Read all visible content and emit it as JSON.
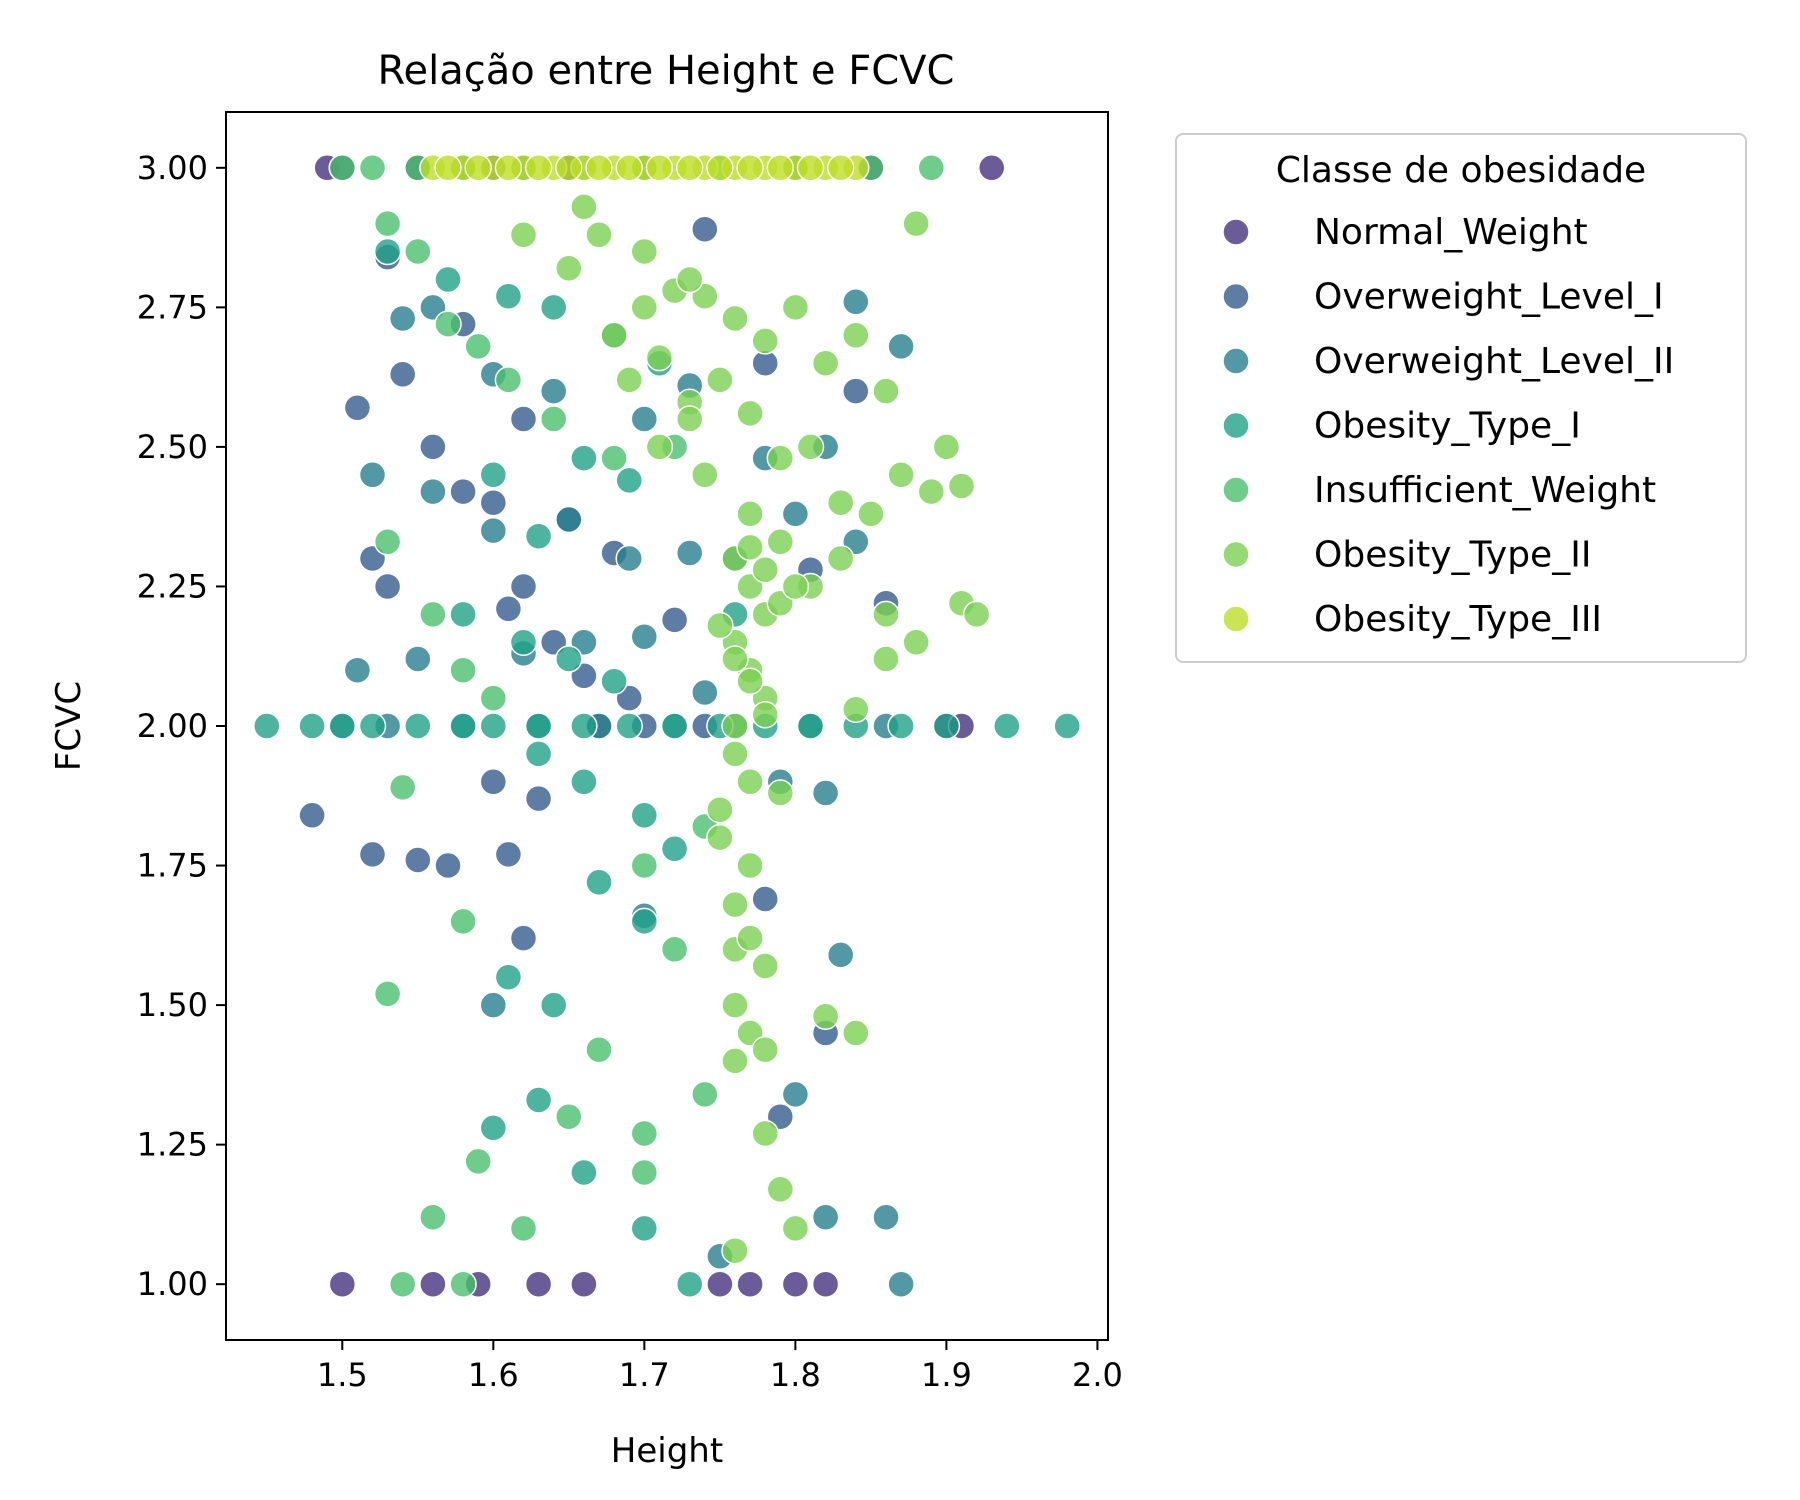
{
  "chart_data": {
    "type": "scatter",
    "title": "Relação entre Height e FCVC",
    "xlabel": "Height",
    "ylabel": "FCVC",
    "xlim": [
      1.423,
      2.007
    ],
    "ylim": [
      0.9,
      3.1
    ],
    "xticks": [
      "1.5",
      "1.6",
      "1.7",
      "1.8",
      "1.9",
      "2.0"
    ],
    "yticks": [
      "1.00",
      "1.25",
      "1.50",
      "1.75",
      "2.00",
      "2.25",
      "2.50",
      "2.75",
      "3.00"
    ],
    "grid": false,
    "legend": {
      "title": "Classe de obesidade",
      "placement": "outside-upper-right"
    },
    "series": [
      {
        "name": "Normal_Weight",
        "color": "#46327e",
        "x": [
          1.49,
          1.5,
          1.55,
          1.58,
          1.6,
          1.62,
          1.65,
          1.7,
          1.8,
          1.85,
          1.93,
          1.5,
          1.56,
          1.59,
          1.63,
          1.66,
          1.75,
          1.77,
          1.8,
          1.82,
          1.9,
          1.91
        ],
        "y": [
          3.0,
          3.0,
          3.0,
          3.0,
          3.0,
          3.0,
          3.0,
          3.0,
          3.0,
          3.0,
          3.0,
          1.0,
          1.0,
          1.0,
          1.0,
          1.0,
          1.0,
          1.0,
          1.0,
          1.0,
          2.0,
          2.0
        ]
      },
      {
        "name": "Overweight_Level_I",
        "color": "#365c8d",
        "x": [
          1.53,
          1.58,
          1.62,
          1.6,
          1.65,
          1.61,
          1.56,
          1.52,
          1.64,
          1.62,
          1.66,
          1.69,
          1.72,
          1.68,
          1.81,
          1.84,
          1.78,
          1.74,
          1.6,
          1.63,
          1.57,
          1.55,
          1.58,
          1.48,
          1.51,
          1.62,
          1.67,
          1.7,
          1.74,
          1.86,
          1.52,
          1.61,
          1.78,
          1.79,
          1.82,
          1.53,
          1.54
        ],
        "y": [
          2.84,
          2.72,
          2.55,
          2.4,
          2.37,
          2.21,
          2.5,
          2.3,
          2.15,
          2.25,
          2.09,
          2.05,
          2.19,
          2.31,
          2.28,
          2.6,
          2.65,
          2.89,
          1.9,
          1.87,
          1.75,
          1.76,
          2.42,
          1.84,
          2.57,
          1.62,
          2.0,
          2.0,
          2.0,
          2.22,
          1.77,
          1.77,
          1.69,
          1.3,
          1.45,
          2.25,
          2.63
        ]
      },
      {
        "name": "Overweight_Level_II",
        "color": "#277f8e",
        "x": [
          1.5,
          1.53,
          1.58,
          1.63,
          1.67,
          1.72,
          1.76,
          1.81,
          1.86,
          1.54,
          1.56,
          1.6,
          1.64,
          1.7,
          1.73,
          1.78,
          1.82,
          1.84,
          1.52,
          1.56,
          1.6,
          1.65,
          1.69,
          1.73,
          1.76,
          1.8,
          1.84,
          1.87,
          1.51,
          1.55,
          1.62,
          1.66,
          1.7,
          1.74,
          1.79,
          1.82,
          1.83,
          1.86,
          1.87,
          1.82,
          1.75,
          1.8,
          1.7,
          1.6
        ],
        "y": [
          2.0,
          2.0,
          2.0,
          2.0,
          2.0,
          2.0,
          2.0,
          2.0,
          2.0,
          2.73,
          2.75,
          2.63,
          2.6,
          2.55,
          2.61,
          2.48,
          2.5,
          2.76,
          2.45,
          2.42,
          2.35,
          2.37,
          2.3,
          2.31,
          2.3,
          2.38,
          2.33,
          2.68,
          2.1,
          2.12,
          2.13,
          2.15,
          2.16,
          2.06,
          1.9,
          1.88,
          1.59,
          1.12,
          1.0,
          1.12,
          1.05,
          1.34,
          1.66,
          1.5
        ]
      },
      {
        "name": "Obesity_Type_I",
        "color": "#1fa187",
        "x": [
          1.45,
          1.48,
          1.5,
          1.52,
          1.55,
          1.58,
          1.6,
          1.63,
          1.66,
          1.69,
          1.72,
          1.75,
          1.78,
          1.81,
          1.84,
          1.87,
          1.9,
          1.94,
          1.98,
          1.53,
          1.57,
          1.61,
          1.64,
          1.68,
          1.71,
          1.6,
          1.63,
          1.66,
          1.69,
          1.58,
          1.62,
          1.65,
          1.68,
          1.63,
          1.66,
          1.7,
          1.72,
          1.61,
          1.64,
          1.67,
          1.7,
          1.6,
          1.63,
          1.66,
          1.7,
          1.73,
          1.76
        ],
        "y": [
          2.0,
          2.0,
          2.0,
          2.0,
          2.0,
          2.0,
          2.0,
          2.0,
          2.0,
          2.0,
          2.0,
          2.0,
          2.0,
          2.0,
          2.0,
          2.0,
          2.0,
          2.0,
          2.0,
          2.85,
          2.8,
          2.77,
          2.75,
          2.7,
          2.65,
          2.45,
          2.34,
          2.48,
          2.44,
          2.2,
          2.15,
          2.12,
          2.08,
          1.95,
          1.9,
          1.84,
          1.78,
          1.55,
          1.5,
          1.72,
          1.65,
          1.28,
          1.33,
          1.2,
          1.1,
          1.0,
          2.2
        ]
      },
      {
        "name": "Insufficient_Weight",
        "color": "#4ac16d",
        "x": [
          1.5,
          1.52,
          1.55,
          1.58,
          1.62,
          1.66,
          1.7,
          1.75,
          1.8,
          1.85,
          1.89,
          1.53,
          1.55,
          1.57,
          1.59,
          1.61,
          1.64,
          1.68,
          1.72,
          1.53,
          1.56,
          1.58,
          1.6,
          1.54,
          1.58,
          1.53,
          1.7,
          1.72,
          1.74,
          1.56,
          1.59,
          1.62,
          1.65,
          1.67,
          1.7,
          1.54,
          1.58,
          1.7,
          1.74
        ],
        "y": [
          3.0,
          3.0,
          3.0,
          3.0,
          3.0,
          3.0,
          3.0,
          3.0,
          3.0,
          3.0,
          3.0,
          2.9,
          2.85,
          2.72,
          2.68,
          2.62,
          2.55,
          2.48,
          2.5,
          2.33,
          2.2,
          2.1,
          2.05,
          1.89,
          1.65,
          1.52,
          1.75,
          1.6,
          1.82,
          1.12,
          1.22,
          1.1,
          1.3,
          1.42,
          1.27,
          1.0,
          1.0,
          1.2,
          1.34
        ]
      },
      {
        "name": "Obesity_Type_II",
        "color": "#7ad151",
        "x": [
          1.76,
          1.77,
          1.78,
          1.76,
          1.77,
          1.78,
          1.76,
          1.77,
          1.78,
          1.75,
          1.79,
          1.76,
          1.77,
          1.78,
          1.76,
          1.77,
          1.75,
          1.79,
          1.76,
          1.77,
          1.78,
          1.76,
          1.77,
          1.76,
          1.78,
          1.7,
          1.68,
          1.72,
          1.71,
          1.69,
          1.73,
          1.65,
          1.67,
          1.74,
          1.76,
          1.78,
          1.8,
          1.82,
          1.84,
          1.86,
          1.88,
          1.9,
          1.91,
          1.83,
          1.85,
          1.87,
          1.89,
          1.91,
          1.92,
          1.81,
          1.83,
          1.86,
          1.88,
          1.8,
          1.84,
          1.86,
          1.62,
          1.66,
          1.7,
          1.73,
          1.75,
          1.77,
          1.79,
          1.81,
          1.77,
          1.76,
          1.75,
          1.78,
          1.79,
          1.8,
          1.76,
          1.82,
          1.84,
          1.73,
          1.71,
          1.74,
          1.77,
          1.79
        ],
        "y": [
          2.3,
          2.25,
          2.2,
          2.15,
          2.1,
          2.05,
          2.0,
          2.32,
          2.28,
          2.18,
          2.22,
          2.12,
          2.08,
          2.02,
          1.95,
          1.9,
          1.85,
          1.88,
          1.6,
          1.62,
          1.57,
          1.5,
          1.45,
          1.4,
          1.42,
          2.75,
          2.7,
          2.78,
          2.66,
          2.62,
          2.58,
          2.82,
          2.88,
          2.77,
          2.73,
          2.69,
          2.75,
          2.65,
          2.7,
          2.6,
          2.9,
          2.5,
          2.43,
          2.4,
          2.38,
          2.45,
          2.42,
          2.22,
          2.2,
          2.25,
          2.3,
          2.2,
          2.15,
          2.25,
          2.03,
          2.12,
          2.88,
          2.93,
          2.85,
          2.8,
          2.62,
          2.56,
          2.48,
          2.5,
          1.75,
          1.68,
          1.8,
          1.27,
          1.17,
          1.1,
          1.06,
          1.48,
          1.45,
          2.55,
          2.5,
          2.45,
          2.38,
          2.33
        ]
      },
      {
        "name": "Obesity_Type_III",
        "color": "#bddf26",
        "x": [
          1.56,
          1.58,
          1.6,
          1.62,
          1.64,
          1.66,
          1.68,
          1.7,
          1.72,
          1.74,
          1.76,
          1.78,
          1.8,
          1.82,
          1.84,
          1.59,
          1.63,
          1.67,
          1.71,
          1.75,
          1.79,
          1.83,
          1.57,
          1.61,
          1.65,
          1.69,
          1.73,
          1.77,
          1.81
        ],
        "y": [
          3.0,
          3.0,
          3.0,
          3.0,
          3.0,
          3.0,
          3.0,
          3.0,
          3.0,
          3.0,
          3.0,
          3.0,
          3.0,
          3.0,
          3.0,
          3.0,
          3.0,
          3.0,
          3.0,
          3.0,
          3.0,
          3.0,
          3.0,
          3.0,
          3.0,
          3.0,
          3.0,
          3.0,
          3.0
        ]
      }
    ]
  }
}
